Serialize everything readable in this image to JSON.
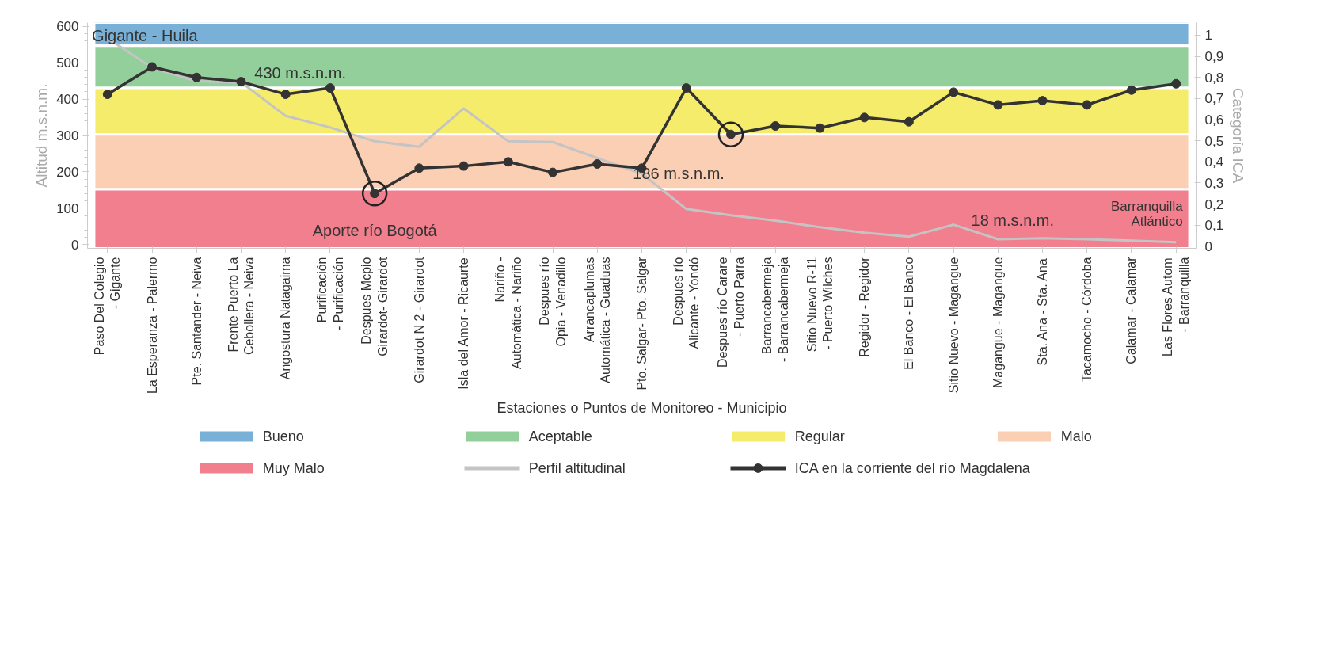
{
  "chart_data": {
    "type": "line",
    "categories": [
      "Paso Del Colegio - Gigante",
      "La Esperanza - Palermo",
      "Pte. Santander - Neiva",
      "Frente Puerto La Cebollera - Neiva",
      "Angostura Natagaima",
      "Purificación - Purificación",
      "Despues Mcpio Girardot- Girardot",
      "Girardot N 2 - Girardot",
      "Isla del Amor - Ricaurte",
      "Nariño - Automática - Nariño",
      "Despues río Opia - Venadillo",
      "Arrancaplumas Automática - Guaduas",
      "Pto. Salgar- Pto. Salgar",
      "Despues río Alicante - Yondó",
      "Despues río Carare - Puerto Parra",
      "Barrancabermeja - Barrancabermeja",
      "Sitio Nuevo R-11 - Puerto Wilches",
      "Regidor - Regidor",
      "El Banco - El Banco",
      "Sitio Nuevo - Magangue",
      "Magangue - Magangue",
      "Sta. Ana - Sta. Ana",
      "Tacamocho - Córdoba",
      "Calamar - Calamar",
      "Las Flores Autom - Barranquilla"
    ],
    "series": [
      {
        "name": "Perfil altitudinal",
        "color": "#c4c4c4",
        "marker": "none",
        "values": [
          567,
          486,
          449,
          446,
          354,
          322,
          284,
          269,
          374,
          284,
          282,
          238,
          195,
          98,
          81,
          66,
          48,
          33,
          22,
          55,
          15,
          18,
          15,
          11,
          7
        ]
      },
      {
        "name": "ICA en la corriente del río Magdalena",
        "color": "#333333",
        "marker": "circle",
        "axis": "y2",
        "values": [
          0.72,
          0.85,
          0.8,
          0.78,
          0.72,
          0.75,
          0.25,
          0.37,
          0.38,
          0.4,
          0.35,
          0.39,
          0.37,
          0.75,
          0.53,
          0.57,
          0.56,
          0.61,
          0.59,
          0.73,
          0.67,
          0.69,
          0.67,
          0.74,
          0.77
        ]
      }
    ],
    "bands": [
      {
        "axis": "y2",
        "from": 0.95,
        "to": 1.06,
        "label": "Bueno",
        "color": "#78b0d8"
      },
      {
        "axis": "y2",
        "from": 0.75,
        "to": 0.95,
        "label": "Aceptable",
        "color": "#93cf9b"
      },
      {
        "axis": "y2",
        "from": 0.53,
        "to": 0.75,
        "label": "Regular",
        "color": "#f4ec6a"
      },
      {
        "axis": "y2",
        "from": 0.27,
        "to": 0.53,
        "label": "Malo",
        "color": "#fbcfb3"
      },
      {
        "axis": "y2",
        "from": -0.01,
        "to": 0.27,
        "label": "Muy Malo",
        "color": "#f27f8e"
      }
    ],
    "xlabel": "Estaciones o Puntos de Monitoreo - Municipio",
    "ylabel": "Altitud m.s.n.m.",
    "y2label": "Categoría ICA",
    "ylim": [
      -10,
      610
    ],
    "yticks": [
      0,
      100,
      200,
      300,
      400,
      500,
      600
    ],
    "y2lim": [
      -0.01,
      1.06
    ],
    "y2ticks": [
      0,
      {
        "value": 0.1,
        "label": "0,1"
      },
      {
        "value": 0.2,
        "label": "0,2"
      },
      {
        "value": 0.3,
        "label": "0,3"
      },
      {
        "value": 0.4,
        "label": "0,4"
      },
      {
        "value": 0.5,
        "label": "0,5"
      },
      {
        "value": 0.6,
        "label": "0,6"
      },
      {
        "value": 0.7,
        "label": "0,7"
      },
      {
        "value": 0.8,
        "label": "0,8"
      },
      {
        "value": 0.9,
        "label": "0,9"
      },
      1
    ],
    "annotations": [
      "Gigante - Huila",
      "430 m.s.n.m.",
      "Aporte río Bogotá",
      "186 m.s.n.m.",
      "18 m.s.n.m.",
      "Barranquilla\nAtlántico"
    ],
    "legend": "bottom",
    "grid": false
  }
}
